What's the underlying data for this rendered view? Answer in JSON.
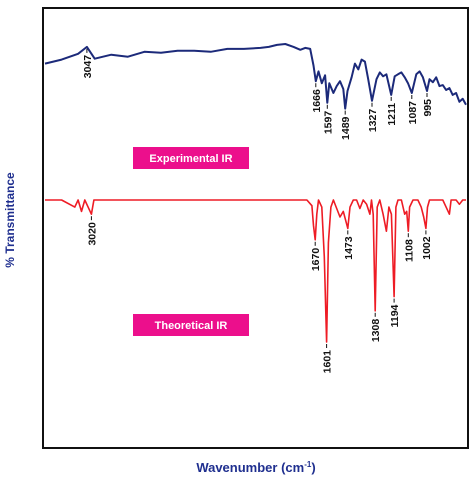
{
  "chart_data": {
    "type": "line",
    "xlabel_main": "Wavenumber (cm",
    "xlabel_sup": "-1",
    "xlabel_end": ")",
    "ylabel": "% Transmittance",
    "x_reversed": true,
    "grid": false,
    "series": [
      {
        "name": "Experimental IR",
        "color": "#1c2a7a",
        "points": [
          [
            3300,
            0.22
          ],
          [
            3200,
            0.18
          ],
          [
            3100,
            0.12
          ],
          [
            3047,
            0.05
          ],
          [
            3000,
            0.17
          ],
          [
            2900,
            0.13
          ],
          [
            2800,
            0.15
          ],
          [
            2700,
            0.1
          ],
          [
            2600,
            0.11
          ],
          [
            2500,
            0.09
          ],
          [
            2400,
            0.09
          ],
          [
            2300,
            0.1
          ],
          [
            2200,
            0.07
          ],
          [
            2100,
            0.07
          ],
          [
            2000,
            0.06
          ],
          [
            1950,
            0.05
          ],
          [
            1900,
            0.03
          ],
          [
            1850,
            0.02
          ],
          [
            1800,
            0.05
          ],
          [
            1760,
            0.08
          ],
          [
            1730,
            0.06
          ],
          [
            1700,
            0.07
          ],
          [
            1680,
            0.24
          ],
          [
            1666,
            0.4
          ],
          [
            1650,
            0.3
          ],
          [
            1630,
            0.42
          ],
          [
            1610,
            0.34
          ],
          [
            1597,
            0.62
          ],
          [
            1585,
            0.42
          ],
          [
            1560,
            0.52
          ],
          [
            1540,
            0.45
          ],
          [
            1520,
            0.4
          ],
          [
            1500,
            0.48
          ],
          [
            1489,
            0.68
          ],
          [
            1475,
            0.5
          ],
          [
            1450,
            0.36
          ],
          [
            1430,
            0.22
          ],
          [
            1410,
            0.28
          ],
          [
            1390,
            0.18
          ],
          [
            1370,
            0.2
          ],
          [
            1350,
            0.38
          ],
          [
            1327,
            0.6
          ],
          [
            1300,
            0.38
          ],
          [
            1280,
            0.31
          ],
          [
            1260,
            0.35
          ],
          [
            1240,
            0.33
          ],
          [
            1211,
            0.54
          ],
          [
            1190,
            0.35
          ],
          [
            1170,
            0.33
          ],
          [
            1150,
            0.31
          ],
          [
            1130,
            0.36
          ],
          [
            1110,
            0.42
          ],
          [
            1087,
            0.52
          ],
          [
            1060,
            0.33
          ],
          [
            1040,
            0.3
          ],
          [
            1020,
            0.36
          ],
          [
            995,
            0.5
          ],
          [
            980,
            0.38
          ],
          [
            960,
            0.41
          ],
          [
            940,
            0.36
          ],
          [
            920,
            0.45
          ],
          [
            900,
            0.44
          ],
          [
            880,
            0.49
          ],
          [
            860,
            0.47
          ],
          [
            840,
            0.54
          ],
          [
            820,
            0.52
          ],
          [
            800,
            0.61
          ],
          [
            780,
            0.58
          ],
          [
            760,
            0.64
          ]
        ]
      },
      {
        "name": "Theoretical IR",
        "color": "#ee1c25",
        "points": [
          [
            3300,
            0.0
          ],
          [
            3200,
            0.0
          ],
          [
            3120,
            0.05
          ],
          [
            3100,
            0.0
          ],
          [
            3080,
            0.08
          ],
          [
            3060,
            0.0
          ],
          [
            3040,
            0.05
          ],
          [
            3020,
            0.1
          ],
          [
            3005,
            0.0
          ],
          [
            2950,
            0.0
          ],
          [
            2800,
            0.0
          ],
          [
            2600,
            0.0
          ],
          [
            2400,
            0.0
          ],
          [
            2200,
            0.0
          ],
          [
            2000,
            0.0
          ],
          [
            1850,
            0.0
          ],
          [
            1720,
            0.0
          ],
          [
            1690,
            0.04
          ],
          [
            1680,
            0.18
          ],
          [
            1670,
            0.28
          ],
          [
            1660,
            0.1
          ],
          [
            1650,
            0.0
          ],
          [
            1630,
            0.05
          ],
          [
            1615,
            0.4
          ],
          [
            1601,
            1.0
          ],
          [
            1590,
            0.3
          ],
          [
            1575,
            0.05
          ],
          [
            1560,
            0.0
          ],
          [
            1540,
            0.06
          ],
          [
            1520,
            0.12
          ],
          [
            1500,
            0.08
          ],
          [
            1473,
            0.2
          ],
          [
            1460,
            0.05
          ],
          [
            1440,
            0.0
          ],
          [
            1420,
            0.0
          ],
          [
            1400,
            0.06
          ],
          [
            1380,
            0.0
          ],
          [
            1360,
            0.03
          ],
          [
            1340,
            0.1
          ],
          [
            1330,
            0.0
          ],
          [
            1320,
            0.1
          ],
          [
            1308,
            0.78
          ],
          [
            1296,
            0.05
          ],
          [
            1280,
            0.0
          ],
          [
            1260,
            0.1
          ],
          [
            1240,
            0.22
          ],
          [
            1225,
            0.05
          ],
          [
            1210,
            0.1
          ],
          [
            1194,
            0.68
          ],
          [
            1183,
            0.05
          ],
          [
            1170,
            0.0
          ],
          [
            1150,
            0.0
          ],
          [
            1130,
            0.1
          ],
          [
            1118,
            0.08
          ],
          [
            1108,
            0.22
          ],
          [
            1100,
            0.05
          ],
          [
            1080,
            0.0
          ],
          [
            1050,
            0.0
          ],
          [
            1030,
            0.05
          ],
          [
            1015,
            0.12
          ],
          [
            1002,
            0.2
          ],
          [
            992,
            0.05
          ],
          [
            980,
            0.0
          ],
          [
            950,
            0.0
          ],
          [
            900,
            0.0
          ],
          [
            880,
            0.05
          ],
          [
            860,
            0.1
          ],
          [
            850,
            0.0
          ],
          [
            820,
            0.0
          ],
          [
            800,
            0.03
          ],
          [
            780,
            0.0
          ],
          [
            760,
            0.0
          ]
        ]
      }
    ],
    "xlim": [
      3300,
      760
    ],
    "peaks_experimental": [
      "3047",
      "1666",
      "1597",
      "1489",
      "1327",
      "1211",
      "1087",
      "995"
    ],
    "peaks_theoretical": [
      "3020",
      "1670",
      "1601",
      "1473",
      "1308",
      "1194",
      "1108",
      "1002"
    ],
    "badges": {
      "experimental": "Experimental IR",
      "theoretical": "Theoretical IR",
      "color": "#ec0f8c"
    }
  }
}
